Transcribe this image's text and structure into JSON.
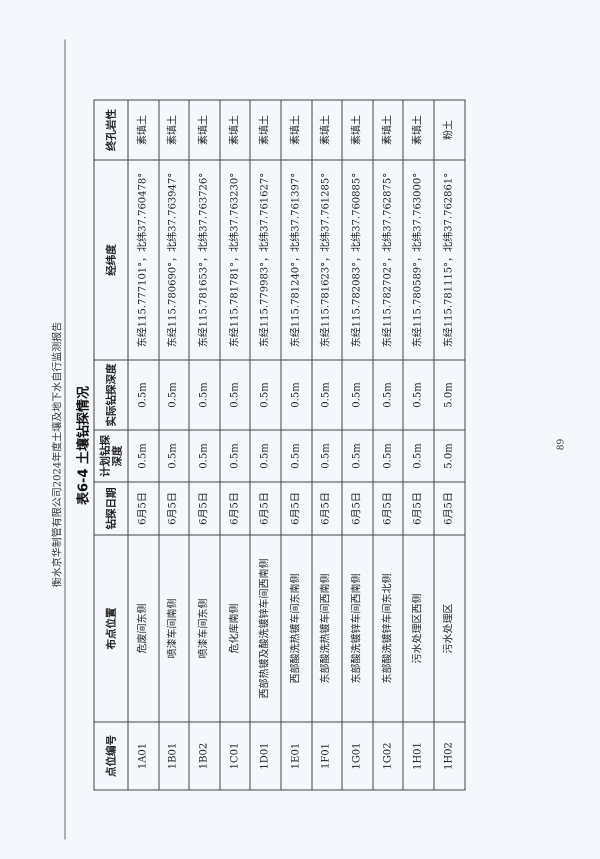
{
  "header": "衡水京华制管有限公司2024年度土壤及地下水自行监测报告",
  "title": "表6-4  土壤钻探情况",
  "page_number": "89",
  "table": {
    "columns": [
      "点位编号",
      "布点位置",
      "钻探日期",
      "计划钻探深度",
      "实际钻探深度",
      "经纬度",
      "终孔岩性"
    ],
    "rows": [
      [
        "1A01",
        "危废间东侧",
        "6月5日",
        "0.5m",
        "0.5m",
        "东经115.777101°，北纬37.760478°",
        "素填土"
      ],
      [
        "1B01",
        "喷漆车间南侧",
        "6月5日",
        "0.5m",
        "0.5m",
        "东经115.780690°，北纬37.763947°",
        "素填土"
      ],
      [
        "1B02",
        "喷漆车间东侧",
        "6月5日",
        "0.5m",
        "0.5m",
        "东经115.781653°，北纬37.763726°",
        "素填土"
      ],
      [
        "1C01",
        "危化库南侧",
        "6月5日",
        "0.5m",
        "0.5m",
        "东经115.781781°，北纬37.763230°",
        "素填土"
      ],
      [
        "1D01",
        "西部热镀及酸洗镀锌车间西南侧",
        "6月5日",
        "0.5m",
        "0.5m",
        "东经115.779983°，北纬37.761627°",
        "素填土"
      ],
      [
        "1E01",
        "西部酸洗热镀车间东南侧",
        "6月5日",
        "0.5m",
        "0.5m",
        "东经115.781240°，北纬37.761397°",
        "素填土"
      ],
      [
        "1F01",
        "东部酸洗热镀车间西南侧",
        "6月5日",
        "0.5m",
        "0.5m",
        "东经115.781623°，北纬37.761285°",
        "素填土"
      ],
      [
        "1G01",
        "东部酸洗镀锌车间西南侧",
        "6月5日",
        "0.5m",
        "0.5m",
        "东经115.782083°，北纬37.760885°",
        "素填土"
      ],
      [
        "1G02",
        "东部酸洗镀锌车间东北侧",
        "6月5日",
        "0.5m",
        "0.5m",
        "东经115.782702°，北纬37.762875°",
        "素填土"
      ],
      [
        "1H01",
        "污水处理区西侧",
        "6月5日",
        "0.5m",
        "0.5m",
        "东经115.780589°，北纬37.763000°",
        "素填土"
      ],
      [
        "1H02",
        "污水处理区",
        "6月5日",
        "5.0m",
        "5.0m",
        "东经115.781115°，北纬37.762861°",
        "粉土"
      ]
    ]
  }
}
